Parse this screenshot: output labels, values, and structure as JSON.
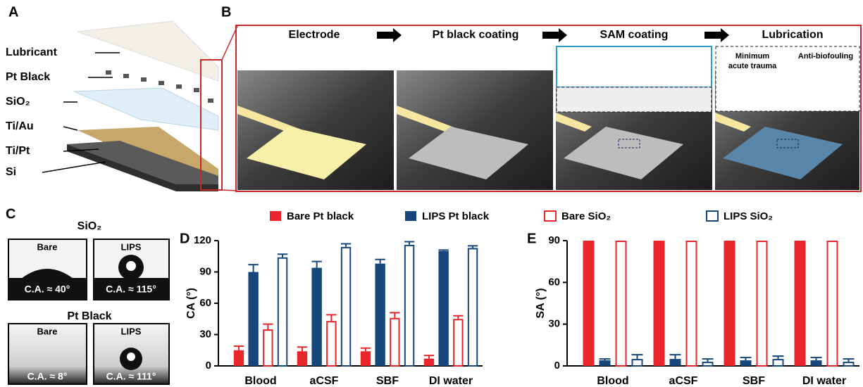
{
  "panel_labels": [
    "A",
    "B",
    "C",
    "D",
    "E"
  ],
  "panel_a": {
    "layers": [
      "Lubricant",
      "Pt Black",
      "SiO₂",
      "Ti/Au",
      "Ti/Pt",
      "Si"
    ]
  },
  "panel_b": {
    "steps": [
      "Electrode",
      "Pt black coating",
      "SAM coating",
      "Lubrication"
    ],
    "inset": [
      "Minimum",
      "acute trauma",
      "Anti-biofouling"
    ]
  },
  "panel_c": {
    "groups": [
      {
        "title": "SiO₂",
        "images": [
          {
            "label": "Bare",
            "ca": "C.A. ≈ 40°"
          },
          {
            "label": "LIPS",
            "ca": "C.A. ≈ 115°"
          }
        ]
      },
      {
        "title": "Pt Black",
        "images": [
          {
            "label": "Bare",
            "ca": "C.A. ≈ 8°"
          },
          {
            "label": "LIPS",
            "ca": "C.A. ≈ 111°"
          }
        ]
      }
    ]
  },
  "chart_data": [
    {
      "type": "bar",
      "ylabel": "CA (°)",
      "categories": [
        "Blood",
        "aCSF",
        "SBF",
        "DI water"
      ],
      "ylim": [
        0,
        120
      ],
      "yticks": [
        0,
        30,
        60,
        90,
        120
      ],
      "series": [
        {
          "name": "Bare Pt black",
          "color": "#e8262c",
          "style": "filled",
          "values": [
            15,
            14,
            14,
            7
          ],
          "errors": [
            4,
            4,
            3,
            3
          ]
        },
        {
          "name": "LIPS Pt black",
          "color": "#17477a",
          "style": "filled",
          "values": [
            90,
            94,
            98,
            110
          ],
          "errors": [
            7,
            6,
            4,
            1
          ]
        },
        {
          "name": "Bare SiO₂",
          "color": "#e8262c",
          "style": "hollow",
          "values": [
            35,
            43,
            46,
            45
          ],
          "errors": [
            5,
            6,
            5,
            3
          ]
        },
        {
          "name": "LIPS SiO₂",
          "color": "#17477a",
          "style": "hollow",
          "values": [
            104,
            114,
            116,
            113
          ],
          "errors": [
            3,
            3,
            3,
            2
          ]
        }
      ]
    },
    {
      "type": "bar",
      "ylabel": "SA (°)",
      "categories": [
        "Blood",
        "aCSF",
        "SBF",
        "DI water"
      ],
      "ylim": [
        0,
        90
      ],
      "yticks": [
        0,
        30,
        60,
        90
      ],
      "series": [
        {
          "name": "Bare Pt black",
          "color": "#e8262c",
          "style": "filled",
          "values": [
            90,
            90,
            90,
            90
          ]
        },
        {
          "name": "LIPS Pt black",
          "color": "#17477a",
          "style": "filled",
          "values": [
            4,
            5,
            4,
            4
          ],
          "errors": [
            1,
            3,
            2,
            2
          ]
        },
        {
          "name": "Bare SiO₂",
          "color": "#e8262c",
          "style": "hollow",
          "values": [
            90,
            90,
            90,
            90
          ]
        },
        {
          "name": "LIPS SiO₂",
          "color": "#17477a",
          "style": "hollow",
          "values": [
            5,
            3,
            5,
            3
          ],
          "errors": [
            3,
            2,
            2,
            2
          ]
        }
      ]
    }
  ]
}
